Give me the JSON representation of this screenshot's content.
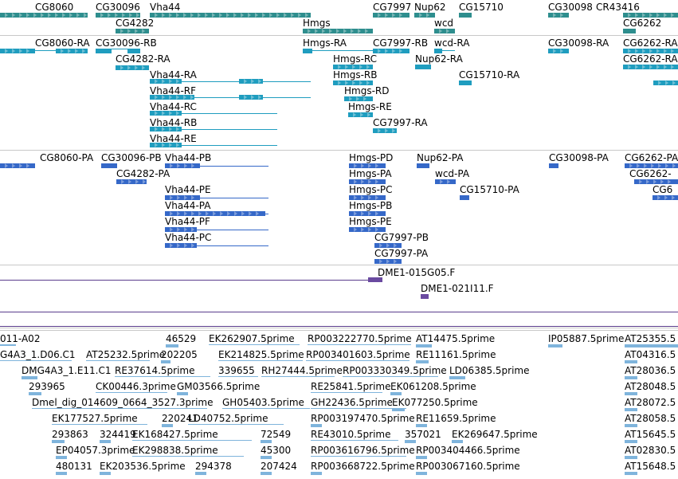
{
  "colors": {
    "gene": "#2e8e8e",
    "transcript": "#1f9dbf",
    "protein": "#3568c8",
    "clone": "#6a4aa0",
    "clone_line": "#5a3c8c",
    "est": "#7fb4dc",
    "separator": "#c8c8c8"
  },
  "tracks": {
    "genes": {
      "labels": [
        {
          "text": "CG8060"
        },
        {
          "text": "CG30096"
        },
        {
          "text": "Vha44"
        },
        {
          "text": "CG7997"
        },
        {
          "text": "Nup62"
        },
        {
          "text": "CG15710"
        },
        {
          "text": "CG30098"
        },
        {
          "text": "CR43416"
        },
        {
          "text": "CG4282"
        },
        {
          "text": "Hmgs"
        },
        {
          "text": "wcd"
        },
        {
          "text": "CG6262"
        }
      ]
    },
    "transcripts": {
      "labels": [
        {
          "text": "CG8060-RA"
        },
        {
          "text": "CG30096-RB"
        },
        {
          "text": "Hmgs-RA"
        },
        {
          "text": "CG7997-RB"
        },
        {
          "text": "wcd-RA"
        },
        {
          "text": "CG30098-RA"
        },
        {
          "text": "CG6262-RA"
        },
        {
          "text": "CG4282-RA"
        },
        {
          "text": "Hmgs-RC"
        },
        {
          "text": "Nup62-RA"
        },
        {
          "text": "CG6262-RA"
        },
        {
          "text": "Vha44-RA"
        },
        {
          "text": "Hmgs-RB"
        },
        {
          "text": "CG15710-RA"
        },
        {
          "text": "Vha44-RF"
        },
        {
          "text": "Hmgs-RD"
        },
        {
          "text": "Vha44-RC"
        },
        {
          "text": "Hmgs-RE"
        },
        {
          "text": "Vha44-RB"
        },
        {
          "text": "CG7997-RA"
        },
        {
          "text": "Vha44-RE"
        }
      ]
    },
    "proteins": {
      "labels": [
        {
          "text": "CG8060-PA"
        },
        {
          "text": "CG30096-PB"
        },
        {
          "text": "Vha44-PB"
        },
        {
          "text": "Hmgs-PD"
        },
        {
          "text": "Nup62-PA"
        },
        {
          "text": "CG30098-PA"
        },
        {
          "text": "CG6262-PA"
        },
        {
          "text": "CG4282-PA"
        },
        {
          "text": "Hmgs-PA"
        },
        {
          "text": "wcd-PA"
        },
        {
          "text": "CG6262-"
        },
        {
          "text": "Vha44-PE"
        },
        {
          "text": "Hmgs-PC"
        },
        {
          "text": "CG15710-PA"
        },
        {
          "text": "CG6"
        },
        {
          "text": "Vha44-PA"
        },
        {
          "text": "Hmgs-PB"
        },
        {
          "text": "Vha44-PF"
        },
        {
          "text": "Hmgs-PE"
        },
        {
          "text": "Vha44-PC"
        },
        {
          "text": "CG7997-PB"
        },
        {
          "text": "CG7997-PA"
        }
      ]
    },
    "clones": {
      "labels": [
        {
          "text": "DME1-015G05.F"
        },
        {
          "text": "DME1-021I11.F"
        }
      ]
    },
    "ests": {
      "labels": [
        {
          "text": "011-A02"
        },
        {
          "text": "46529"
        },
        {
          "text": "EK262907.5prime"
        },
        {
          "text": "RP003222770.5prime"
        },
        {
          "text": "AT14475.5prime"
        },
        {
          "text": "IP05887.5prime"
        },
        {
          "text": "AT25355.5"
        },
        {
          "text": "G4A3_1.D06.C1"
        },
        {
          "text": "AT25232.5prime"
        },
        {
          "text": "202205"
        },
        {
          "text": "EK214825.5prime"
        },
        {
          "text": "RP003401603.5prime"
        },
        {
          "text": "RE11161.5prime"
        },
        {
          "text": "AT04316.5"
        },
        {
          "text": "DMG4A3_1.E11.C1"
        },
        {
          "text": "RE37614.5prime"
        },
        {
          "text": "339655"
        },
        {
          "text": "RH27444.5prime"
        },
        {
          "text": "RP003330349.5prime"
        },
        {
          "text": "LD06385.5prime"
        },
        {
          "text": "AT28036.5"
        },
        {
          "text": "293965"
        },
        {
          "text": "CK00446.3prime"
        },
        {
          "text": "GM03566.5prime"
        },
        {
          "text": "RE25841.5prime"
        },
        {
          "text": "EK061208.5prime"
        },
        {
          "text": "AT28048.5"
        },
        {
          "text": "Dmel_dig_014609_0664_3527.3prime"
        },
        {
          "text": "GH05403.5prime"
        },
        {
          "text": "GH22436.5prime"
        },
        {
          "text": "EK077250.5prime"
        },
        {
          "text": "AT28072.5"
        },
        {
          "text": "EK177527.5prime"
        },
        {
          "text": "220241"
        },
        {
          "text": "LD40752.5prime"
        },
        {
          "text": "RP003197470.5prime"
        },
        {
          "text": "RE11659.5prime"
        },
        {
          "text": "AT28058.5"
        },
        {
          "text": "293863"
        },
        {
          "text": "324419"
        },
        {
          "text": "EK168427.5prime"
        },
        {
          "text": "72549"
        },
        {
          "text": "RE43010.5prime"
        },
        {
          "text": "357021"
        },
        {
          "text": "EK269647.5prime"
        },
        {
          "text": "AT15645.5"
        },
        {
          "text": "EP04057.3prime"
        },
        {
          "text": "EK298838.5prime"
        },
        {
          "text": "45300"
        },
        {
          "text": "RP003616796.5prime"
        },
        {
          "text": "RP003404466.5prime"
        },
        {
          "text": "AT02830.5"
        },
        {
          "text": "480131"
        },
        {
          "text": "EK203536.5prime"
        },
        {
          "text": "294378"
        },
        {
          "text": "207424"
        },
        {
          "text": "RP003668722.5prime"
        },
        {
          "text": "RP003067160.5prime"
        },
        {
          "text": "AT15648.5"
        }
      ]
    }
  }
}
